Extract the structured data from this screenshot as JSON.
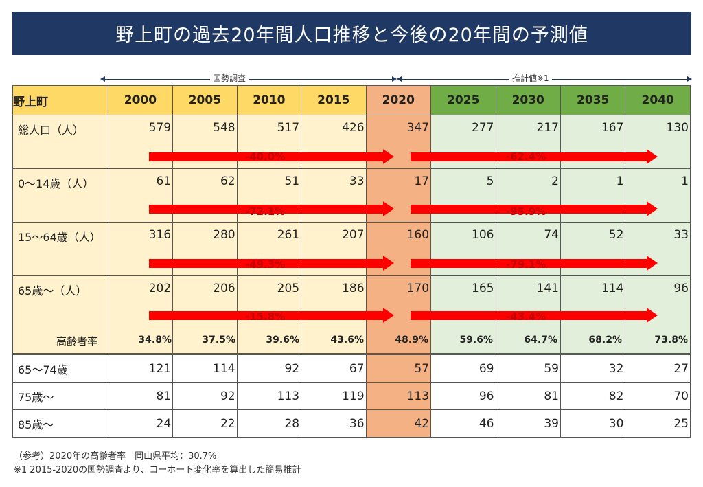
{
  "title": "野上町の過去20年間人口推移と今後の20年間の予測値",
  "spans": {
    "census": "国勢調査",
    "estimate": "推計値※1"
  },
  "header": {
    "label": "野上町",
    "years": [
      "2000",
      "2005",
      "2010",
      "2015",
      "2020",
      "2025",
      "2030",
      "2035",
      "2040"
    ]
  },
  "rows": [
    {
      "label": "総人口（人）",
      "values": [
        "579",
        "548",
        "517",
        "426",
        "347",
        "277",
        "217",
        "167",
        "130"
      ],
      "change_past": "-40.0%",
      "change_future": "-62.4%"
    },
    {
      "label": "0〜14歳（人）",
      "values": [
        "61",
        "62",
        "51",
        "33",
        "17",
        "5",
        "2",
        "1",
        "1"
      ],
      "change_past": "-72.1%",
      "change_future": "-95.9%"
    },
    {
      "label": "15〜64歳（人）",
      "values": [
        "316",
        "280",
        "261",
        "207",
        "160",
        "106",
        "74",
        "52",
        "33"
      ],
      "change_past": "-49.3%",
      "change_future": "-79.1%"
    },
    {
      "label": "65歳〜（人）",
      "values": [
        "202",
        "206",
        "205",
        "186",
        "170",
        "165",
        "141",
        "114",
        "96"
      ],
      "change_past": "-15.8%",
      "change_future": "-43.4%",
      "rate_label": "高齢者率",
      "rates": [
        "34.8%",
        "37.5%",
        "39.6%",
        "43.6%",
        "48.9%",
        "59.6%",
        "64.7%",
        "68.2%",
        "73.8%"
      ]
    },
    {
      "label": "65〜74歳",
      "values": [
        "121",
        "114",
        "92",
        "67",
        "57",
        "69",
        "59",
        "32",
        "27"
      ]
    },
    {
      "label": "75歳〜",
      "values": [
        "81",
        "92",
        "113",
        "119",
        "113",
        "96",
        "81",
        "82",
        "70"
      ]
    },
    {
      "label": "85歳〜",
      "values": [
        "24",
        "22",
        "28",
        "36",
        "42",
        "46",
        "39",
        "30",
        "25"
      ]
    }
  ],
  "notes": [
    "（参考）2020年の高齢者率　岡山県平均：30.7%",
    "※1  2015-2020の国勢調査より、コーホート変化率を算出した簡易推計"
  ],
  "colors": {
    "title_bg": "#1f3864",
    "past_header": "#ffd966",
    "past_cell": "#fff2cc",
    "highlight_2020": "#f4b183",
    "future_header": "#70ad47",
    "future_cell": "#e2efda",
    "arrow": "#ff0000",
    "percent_text": "#c00000"
  }
}
